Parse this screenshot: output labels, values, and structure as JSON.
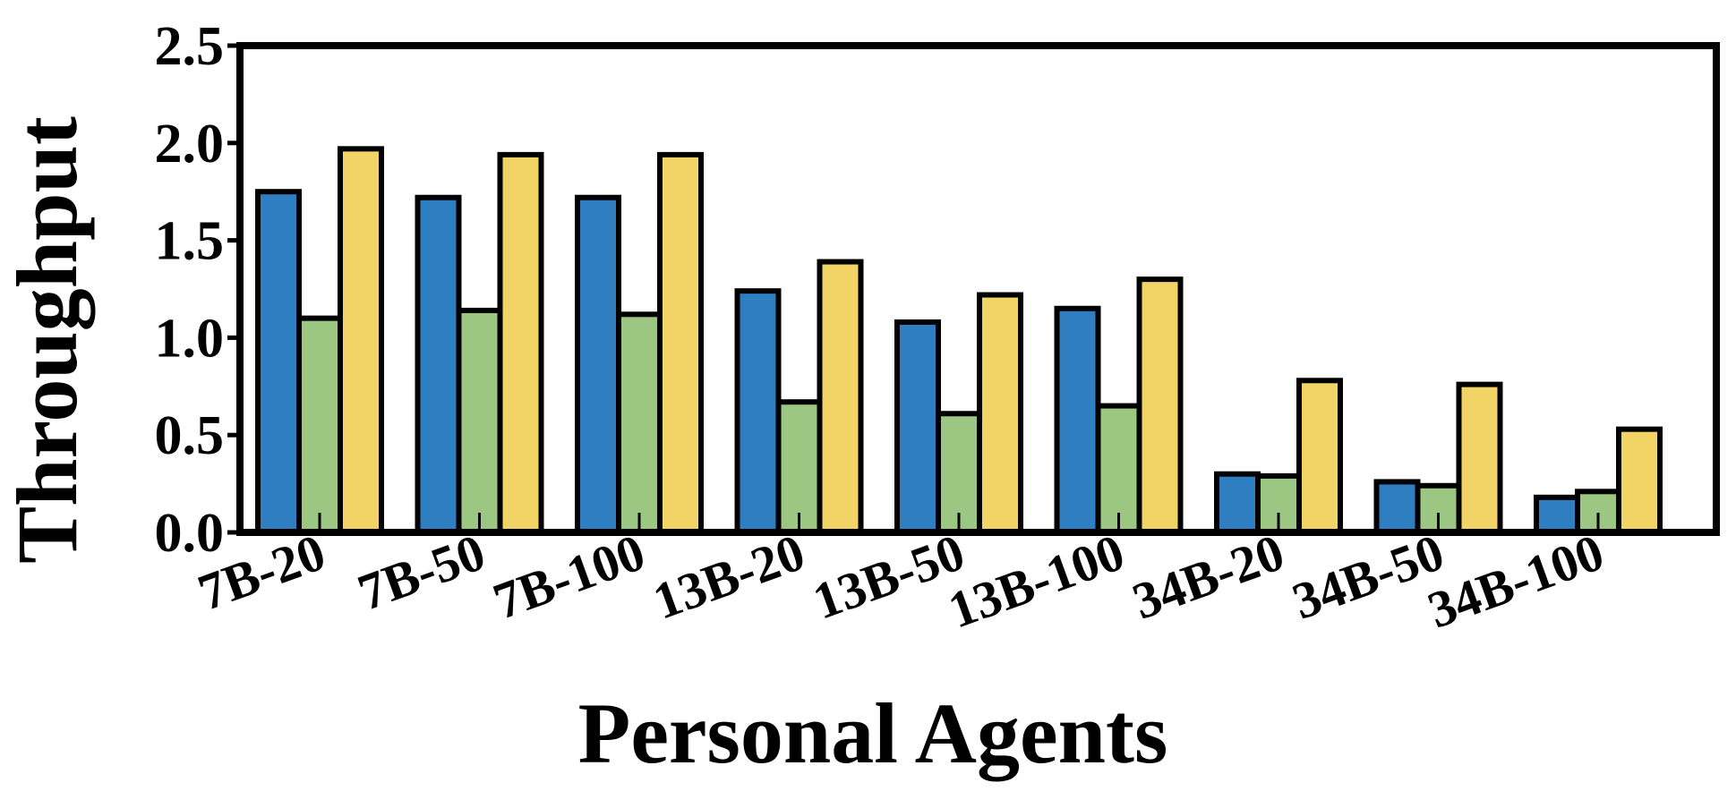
{
  "chart_data": {
    "type": "bar",
    "title": "",
    "xlabel": "Personal Agents",
    "ylabel": "Throughput",
    "ylim": [
      0,
      2.5
    ],
    "yticks": [
      "0.0",
      "0.5",
      "1.0",
      "1.5",
      "2.0",
      "2.5"
    ],
    "grid": false,
    "legend": "none",
    "categories": [
      "7B-20",
      "7B-50",
      "7B-100",
      "13B-20",
      "13B-50",
      "13B-100",
      "34B-20",
      "34B-50",
      "34B-100"
    ],
    "series": [
      {
        "color": "#2f7ec1",
        "values": [
          1.75,
          1.72,
          1.72,
          1.24,
          1.08,
          1.15,
          0.3,
          0.26,
          0.18
        ]
      },
      {
        "color": "#9bc783",
        "values": [
          1.1,
          1.14,
          1.12,
          0.67,
          0.61,
          0.65,
          0.29,
          0.24,
          0.21
        ]
      },
      {
        "color": "#f2d366",
        "values": [
          1.97,
          1.94,
          1.94,
          1.39,
          1.22,
          1.3,
          0.78,
          0.76,
          0.53
        ]
      }
    ]
  }
}
